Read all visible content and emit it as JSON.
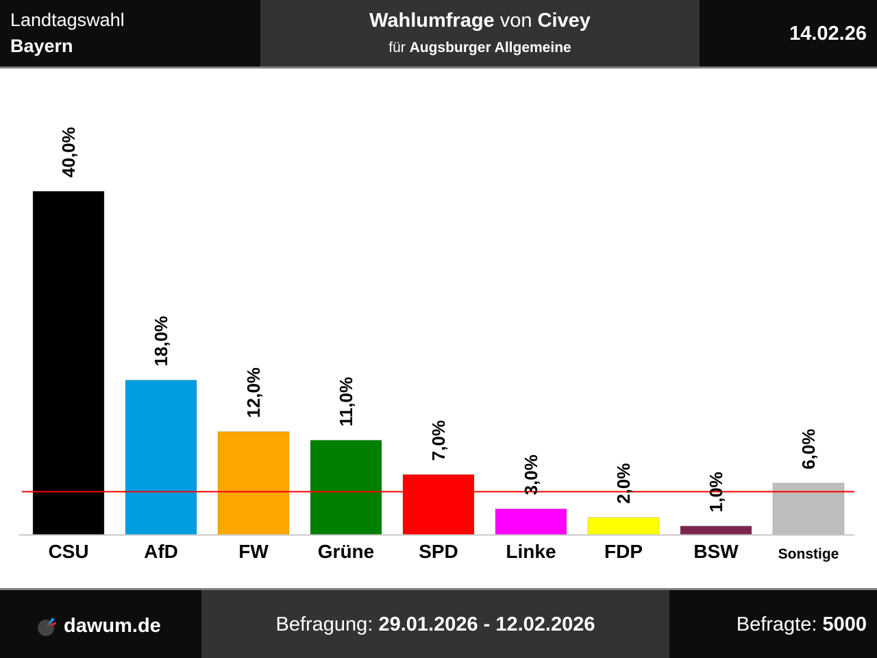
{
  "header": {
    "election_type": "Landtagswahl",
    "region": "Bayern",
    "title_bold_1": "Wahlumfrage",
    "title_plain": " von ",
    "title_bold_2": "Civey",
    "subtitle_plain": "für ",
    "subtitle_bold": "Augsburger Allgemeine",
    "date": "14.02.26"
  },
  "footer": {
    "brand": "dawum.de",
    "period_label": "Befragung: ",
    "period_value": "29.01.2026 - 12.02.2026",
    "respondents_label": "Befragte: ",
    "respondents_value": "5000",
    "logo_colors": {
      "pie": "#444444",
      "slice1": "#1e9be6",
      "slice2": "#e6232d"
    }
  },
  "chart_data": {
    "type": "bar",
    "title": "Wahlumfrage von Civey für Augsburger Allgemeine — Landtagswahl Bayern",
    "xlabel": "",
    "ylabel": "",
    "ylim": [
      0,
      40
    ],
    "grid": false,
    "threshold": {
      "value": 5,
      "color": "#ff0000",
      "label": "5%-Hürde"
    },
    "categories": [
      "CSU",
      "AfD",
      "FW",
      "Grüne",
      "SPD",
      "Linke",
      "FDP",
      "BSW",
      "Sonstige"
    ],
    "values": [
      40.0,
      18.0,
      12.0,
      11.0,
      7.0,
      3.0,
      2.0,
      1.0,
      6.0
    ],
    "value_labels": [
      "40,0%",
      "18,0%",
      "12,0%",
      "11,0%",
      "7,0%",
      "3,0%",
      "2,0%",
      "1,0%",
      "6,0%"
    ],
    "colors": [
      "#000000",
      "#009ee0",
      "#ffa500",
      "#008000",
      "#ff0000",
      "#ff00ff",
      "#ffff00",
      "#7d254f",
      "#bebebe"
    ]
  }
}
